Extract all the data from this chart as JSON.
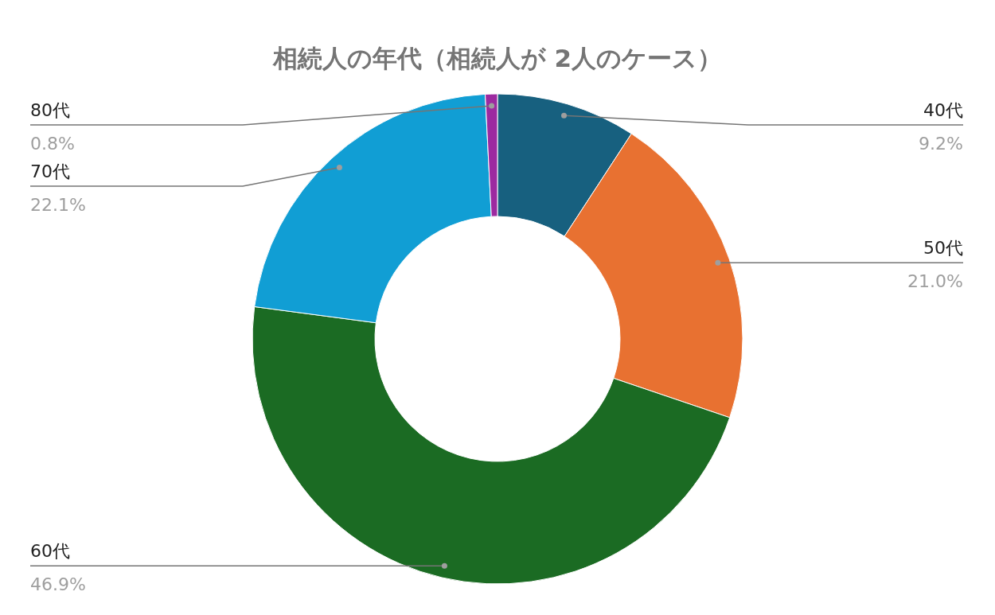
{
  "chart_data": {
    "type": "donut",
    "title": "相続人の年代（相続人が 2人のケース）",
    "categories": [
      "40代",
      "50代",
      "60代",
      "70代",
      "80代"
    ],
    "values": [
      9.2,
      21.0,
      46.9,
      22.1,
      0.8
    ],
    "colors": [
      "#17607f",
      "#e87131",
      "#1b6b23",
      "#119ed4",
      "#9c2aa0"
    ],
    "value_labels": [
      "9.2%",
      "21.0%",
      "46.9%",
      "22.1%",
      "0.8%"
    ]
  }
}
